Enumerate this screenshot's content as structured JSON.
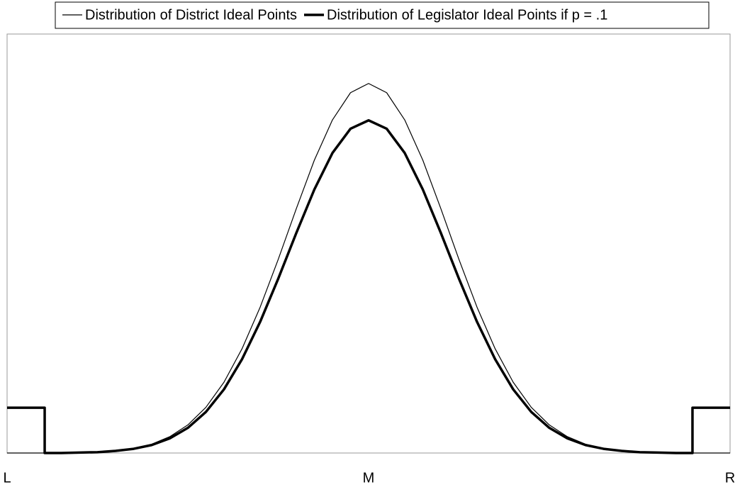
{
  "chart_data": {
    "type": "line",
    "xlim": [
      -1,
      1
    ],
    "ylim": [
      0,
      100
    ],
    "xticks": [
      {
        "value": -1,
        "label": "L"
      },
      {
        "value": 0,
        "label": "M"
      },
      {
        "value": 1,
        "label": "R"
      }
    ],
    "legend": "top",
    "series": [
      {
        "name": "Distribution of District Ideal Points",
        "color": "#000000",
        "line_width": 1.2,
        "x": [
          -1,
          -0.95,
          -0.9,
          -0.85,
          -0.8,
          -0.75,
          -0.7,
          -0.65,
          -0.6,
          -0.55,
          -0.5,
          -0.45,
          -0.4,
          -0.35,
          -0.3,
          -0.25,
          -0.2,
          -0.15,
          -0.1,
          -0.05,
          0,
          0.05,
          0.1,
          0.15,
          0.2,
          0.25,
          0.3,
          0.35,
          0.4,
          0.45,
          0.5,
          0.55,
          0.6,
          0.65,
          0.7,
          0.75,
          0.8,
          0.85,
          0.9,
          0.95,
          1
        ],
        "values": [
          0,
          0,
          0,
          0,
          0.1,
          0.3,
          0.6,
          1.1,
          2.1,
          3.9,
          6.7,
          10.9,
          16.9,
          24.9,
          34.8,
          46.2,
          58.3,
          69.9,
          79.5,
          86.0,
          88.2,
          86.0,
          79.5,
          69.9,
          58.3,
          46.2,
          34.8,
          24.9,
          16.9,
          10.9,
          6.7,
          3.9,
          2.1,
          1.1,
          0.6,
          0.3,
          0.1,
          0,
          0,
          0,
          0
        ]
      },
      {
        "name": "Distribution of Legislator Ideal Points if p = .1",
        "color": "#000000",
        "line_width": 3.5,
        "x": [
          -1,
          -0.896,
          -0.896,
          -0.85,
          -0.8,
          -0.75,
          -0.7,
          -0.65,
          -0.6,
          -0.55,
          -0.5,
          -0.45,
          -0.4,
          -0.35,
          -0.3,
          -0.25,
          -0.2,
          -0.15,
          -0.1,
          -0.05,
          0,
          0.05,
          0.1,
          0.15,
          0.2,
          0.25,
          0.3,
          0.35,
          0.4,
          0.45,
          0.5,
          0.55,
          0.6,
          0.65,
          0.7,
          0.75,
          0.8,
          0.85,
          0.896,
          0.896,
          1
        ],
        "values": [
          10.8,
          10.8,
          0,
          0,
          0.1,
          0.2,
          0.5,
          1.0,
          1.9,
          3.5,
          6.0,
          9.8,
          15.2,
          22.4,
          31.3,
          41.6,
          52.5,
          62.9,
          71.6,
          77.4,
          79.4,
          77.4,
          71.6,
          62.9,
          52.5,
          41.6,
          31.3,
          22.4,
          15.2,
          9.8,
          6.0,
          3.5,
          1.9,
          1.0,
          0.5,
          0.2,
          0.1,
          0,
          0,
          10.8,
          10.8
        ]
      }
    ]
  }
}
